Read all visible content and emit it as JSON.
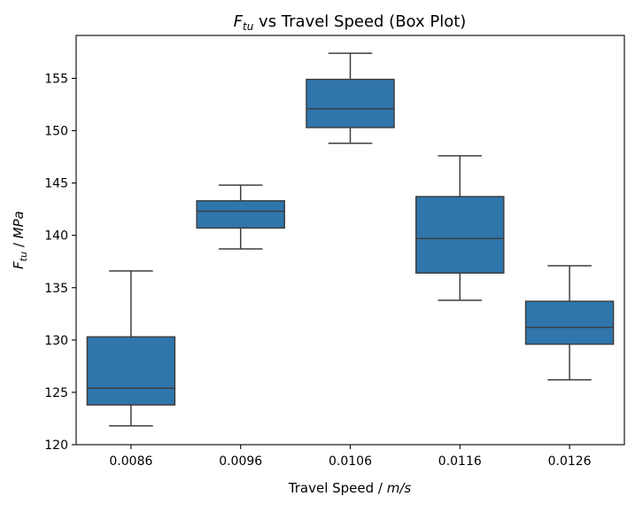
{
  "chart_data": {
    "type": "box",
    "title": {
      "sym": "F",
      "sub": "tu",
      "rest": " vs Travel Speed (Box Plot)"
    },
    "xlabel": {
      "text": "Travel Speed / ",
      "unit": "m/s"
    },
    "ylabel": {
      "sym": "F",
      "sub": "tu",
      "sep": " / ",
      "unit": "MPa"
    },
    "categories": [
      "0.0086",
      "0.0096",
      "0.0106",
      "0.0116",
      "0.0126"
    ],
    "boxes": [
      {
        "category": "0.0086",
        "whisker_low": 121.8,
        "q1": 123.8,
        "median": 125.4,
        "q3": 130.3,
        "whisker_high": 136.6
      },
      {
        "category": "0.0096",
        "whisker_low": 138.7,
        "q1": 140.7,
        "median": 142.3,
        "q3": 143.3,
        "whisker_high": 144.8
      },
      {
        "category": "0.0106",
        "whisker_low": 148.8,
        "q1": 150.3,
        "median": 152.1,
        "q3": 154.9,
        "whisker_high": 157.4
      },
      {
        "category": "0.0116",
        "whisker_low": 133.8,
        "q1": 136.4,
        "median": 139.7,
        "q3": 143.7,
        "whisker_high": 147.6
      },
      {
        "category": "0.0126",
        "whisker_low": 126.2,
        "q1": 129.6,
        "median": 131.2,
        "q3": 133.7,
        "whisker_high": 137.1
      }
    ],
    "yticks": [
      120,
      125,
      130,
      135,
      140,
      145,
      150,
      155
    ],
    "ylim": [
      120,
      159.1
    ],
    "grid": false,
    "colors": {
      "box_fill": "#2f76ad",
      "box_edge": "#3f3f3f",
      "axes": "#000000"
    }
  }
}
